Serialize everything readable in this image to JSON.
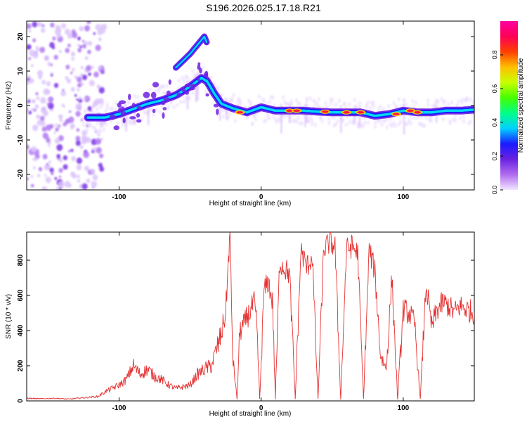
{
  "title": "S196.2026.025.17.18.R21",
  "chart_data": [
    {
      "type": "heatmap",
      "xlabel": "Height of straight line (km)",
      "ylabel": "Frequency (Hz)",
      "xlim": [
        -165,
        150
      ],
      "ylim": [
        -24.5,
        24.5
      ],
      "xticks": [
        -100,
        0,
        100
      ],
      "yticks": [
        -20,
        -10,
        0,
        10,
        20
      ],
      "colorbar": {
        "label": "Normalized spectral amplitude",
        "range": [
          0,
          1
        ],
        "ticks": [
          "0.0",
          "0.2",
          "0.4",
          "0.6",
          "0.8"
        ],
        "colors": [
          "#f2e6ff",
          "#b06cf0",
          "#6b22e0",
          "#1a1aff",
          "#00d0ff",
          "#00ff88",
          "#44ff00",
          "#c8ff00",
          "#ffc000",
          "#ff4000",
          "#ff0055",
          "#ff00a0"
        ]
      },
      "ridge_freq_hz": [
        [
          -120,
          -3.5
        ],
        [
          -110,
          -3.5
        ],
        [
          -100,
          -2.5
        ],
        [
          -90,
          -1
        ],
        [
          -80,
          0.5
        ],
        [
          -70,
          1.5
        ],
        [
          -60,
          3
        ],
        [
          -50,
          5.5
        ],
        [
          -42,
          8
        ],
        [
          -38,
          7
        ],
        [
          -33,
          3.5
        ],
        [
          -28,
          0.5
        ],
        [
          -20,
          -0.8
        ],
        [
          -10,
          -2
        ],
        [
          0,
          -0.5
        ],
        [
          10,
          -1.5
        ],
        [
          20,
          -1.5
        ],
        [
          30,
          -1.5
        ],
        [
          40,
          -1.8
        ],
        [
          50,
          -2
        ],
        [
          60,
          -2
        ],
        [
          70,
          -2
        ],
        [
          80,
          -3
        ],
        [
          90,
          -2.5
        ],
        [
          100,
          -1.5
        ],
        [
          110,
          -2
        ],
        [
          120,
          -2
        ],
        [
          130,
          -1.5
        ],
        [
          140,
          -1.5
        ],
        [
          150,
          -1.2
        ]
      ],
      "upper_branch_freq_hz": [
        [
          -60,
          11
        ],
        [
          -55,
          13
        ],
        [
          -50,
          15
        ],
        [
          -45,
          17.5
        ],
        [
          -40,
          20
        ],
        [
          -38,
          18
        ]
      ],
      "hotspots_freq_hz": [
        [
          -15,
          -2
        ],
        [
          20,
          -1.5
        ],
        [
          25,
          -1.5
        ],
        [
          45,
          -1.8
        ],
        [
          60,
          -2
        ],
        [
          70,
          -2
        ],
        [
          95,
          -2.5
        ],
        [
          105,
          -1.5
        ],
        [
          110,
          -2
        ]
      ]
    },
    {
      "type": "line",
      "xlabel": "Height of straight line (km)",
      "ylabel": "SNR (10 * v/v)",
      "xlim": [
        -165,
        150
      ],
      "ylim": [
        0,
        960
      ],
      "xticks": [
        -100,
        0,
        100
      ],
      "yticks": [
        0,
        200,
        400,
        600,
        800
      ],
      "series": [
        {
          "name": "SNR",
          "color": "#e53030",
          "x": [
            -165,
            -155,
            -145,
            -135,
            -125,
            -115,
            -108,
            -100,
            -95,
            -90,
            -85,
            -80,
            -75,
            -70,
            -65,
            -60,
            -55,
            -50,
            -45,
            -40,
            -35,
            -31,
            -28,
            -25,
            -23,
            -22,
            -20,
            -17,
            -15,
            -12,
            -10,
            -8,
            -5,
            -3,
            -1,
            2,
            5,
            8,
            10,
            13,
            16,
            20,
            24,
            28,
            32,
            36,
            40,
            44,
            48,
            52,
            56,
            60,
            64,
            68,
            72,
            76,
            80,
            84,
            88,
            92,
            96,
            100,
            104,
            108,
            112,
            116,
            120,
            124,
            128,
            132,
            136,
            140,
            145,
            150
          ],
          "y": [
            15,
            12,
            15,
            10,
            18,
            25,
            60,
            90,
            120,
            200,
            150,
            180,
            140,
            120,
            90,
            70,
            80,
            90,
            150,
            180,
            200,
            300,
            380,
            500,
            800,
            950,
            250,
            10,
            400,
            430,
            480,
            500,
            560,
            420,
            10,
            620,
            680,
            560,
            10,
            790,
            760,
            720,
            10,
            860,
            760,
            820,
            10,
            860,
            900,
            880,
            10,
            860,
            880,
            840,
            10,
            860,
            740,
            260,
            180,
            700,
            10,
            520,
            500,
            440,
            10,
            660,
            420,
            520,
            560,
            540,
            500,
            540,
            520,
            500
          ]
        }
      ]
    }
  ]
}
